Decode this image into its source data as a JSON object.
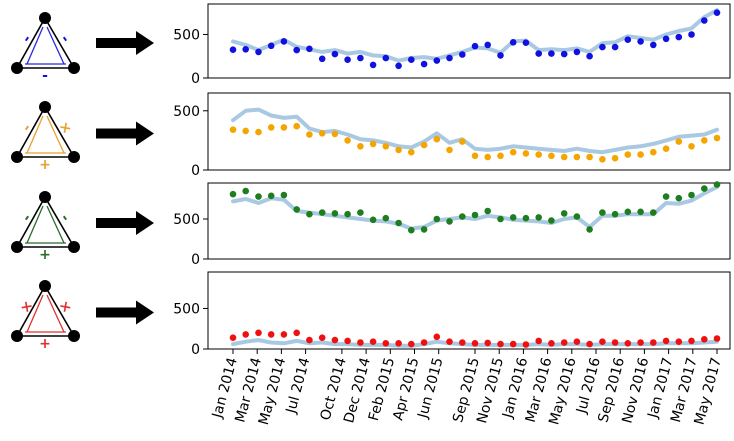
{
  "chart_data": [
    {
      "type": "scatter",
      "marker_color": "#1010e0",
      "line_color": "#a9c9e3",
      "ylim": [
        0,
        850
      ],
      "yticks": [
        0,
        500
      ],
      "icon": {
        "edge_color": "#2a2ad8",
        "signs": [
          "-",
          "-",
          "-"
        ],
        "sign_colors": [
          "#1010e0",
          "#1010e0",
          "#1010e0"
        ]
      },
      "series": [
        {
          "name": "points",
          "values": [
            325,
            330,
            300,
            370,
            420,
            320,
            335,
            220,
            275,
            210,
            230,
            150,
            230,
            140,
            210,
            160,
            200,
            230,
            270,
            365,
            380,
            260,
            410,
            405,
            280,
            280,
            275,
            300,
            250,
            355,
            355,
            440,
            420,
            380,
            450,
            470,
            500,
            660,
            750
          ]
        },
        {
          "name": "trend",
          "values": [
            420,
            380,
            320,
            380,
            440,
            360,
            330,
            300,
            320,
            280,
            300,
            260,
            250,
            200,
            230,
            240,
            220,
            260,
            300,
            350,
            340,
            290,
            420,
            430,
            320,
            330,
            320,
            340,
            300,
            400,
            410,
            480,
            460,
            440,
            500,
            540,
            570,
            700,
            780
          ]
        }
      ]
    },
    {
      "type": "scatter",
      "marker_color": "#f5a500",
      "line_color": "#a9c9e3",
      "ylim": [
        0,
        650
      ],
      "yticks": [
        0,
        500
      ],
      "icon": {
        "edge_color": "#e8a030",
        "signs": [
          "-",
          "×",
          "+"
        ],
        "sign_colors": [
          "#e8a030",
          "#e8a030",
          "#e8a030"
        ]
      },
      "series": [
        {
          "name": "points",
          "values": [
            340,
            330,
            320,
            360,
            360,
            370,
            300,
            310,
            305,
            250,
            200,
            220,
            200,
            170,
            150,
            210,
            260,
            170,
            240,
            120,
            110,
            120,
            150,
            140,
            130,
            120,
            110,
            110,
            110,
            90,
            100,
            130,
            130,
            150,
            180,
            240,
            200,
            250,
            270
          ]
        },
        {
          "name": "trend",
          "values": [
            420,
            500,
            510,
            460,
            440,
            450,
            350,
            320,
            330,
            300,
            260,
            250,
            230,
            200,
            190,
            240,
            310,
            230,
            260,
            180,
            170,
            180,
            200,
            190,
            180,
            170,
            160,
            180,
            160,
            150,
            170,
            190,
            200,
            220,
            250,
            280,
            290,
            300,
            340
          ]
        }
      ]
    },
    {
      "type": "scatter",
      "marker_color": "#1e7d1e",
      "line_color": "#a9c9e3",
      "ylim": [
        0,
        950
      ],
      "yticks": [
        0,
        500
      ],
      "icon": {
        "edge_color": "#2b6b2b",
        "signs": [
          "-",
          "-",
          "+"
        ],
        "sign_colors": [
          "#2b6b2b",
          "#2b6b2b",
          "#2b6b2b"
        ]
      },
      "series": [
        {
          "name": "points",
          "values": [
            810,
            850,
            780,
            790,
            800,
            620,
            560,
            580,
            570,
            560,
            580,
            490,
            510,
            450,
            360,
            370,
            500,
            470,
            530,
            550,
            600,
            500,
            520,
            510,
            520,
            480,
            570,
            530,
            370,
            580,
            560,
            590,
            590,
            580,
            780,
            760,
            800,
            880,
            930
          ]
        },
        {
          "name": "trend",
          "values": [
            720,
            750,
            700,
            760,
            740,
            600,
            580,
            560,
            540,
            520,
            500,
            480,
            470,
            440,
            380,
            400,
            480,
            500,
            520,
            500,
            540,
            520,
            490,
            480,
            470,
            450,
            500,
            520,
            400,
            540,
            540,
            560,
            560,
            560,
            700,
            690,
            730,
            820,
            900
          ]
        }
      ]
    },
    {
      "type": "scatter",
      "marker_color": "#f01010",
      "line_color": "#a9c9e3",
      "ylim": [
        0,
        950
      ],
      "yticks": [
        0,
        500
      ],
      "icon": {
        "edge_color": "#e03030",
        "signs": [
          "×",
          "×",
          "+"
        ],
        "sign_colors": [
          "#e03030",
          "#e03030",
          "#e03030"
        ]
      },
      "series": [
        {
          "name": "points",
          "values": [
            140,
            180,
            200,
            180,
            180,
            200,
            110,
            140,
            110,
            100,
            80,
            90,
            70,
            70,
            60,
            80,
            150,
            90,
            80,
            70,
            75,
            60,
            60,
            55,
            100,
            70,
            80,
            90,
            60,
            90,
            80,
            70,
            80,
            80,
            100,
            90,
            100,
            120,
            130
          ]
        },
        {
          "name": "trend",
          "values": [
            60,
            90,
            110,
            80,
            70,
            100,
            70,
            80,
            60,
            60,
            50,
            50,
            50,
            40,
            40,
            60,
            90,
            70,
            60,
            50,
            50,
            50,
            50,
            50,
            60,
            50,
            60,
            60,
            50,
            60,
            60,
            60,
            60,
            60,
            70,
            70,
            70,
            80,
            90
          ]
        }
      ]
    }
  ],
  "x_tick_labels": [
    "Jan 2014",
    "Mar 2014",
    "May 2014",
    "Jul 2014",
    "Oct 2014",
    "Dec 2014",
    "Feb 2015",
    "Apr 2015",
    "Jun 2015",
    "Sep 2015",
    "Nov 2015",
    "Jan 2016",
    "Mar 2016",
    "May 2016",
    "Jul 2016",
    "Sep 2016",
    "Nov 2016",
    "Jan 2017",
    "Mar 2017",
    "May 2017"
  ]
}
